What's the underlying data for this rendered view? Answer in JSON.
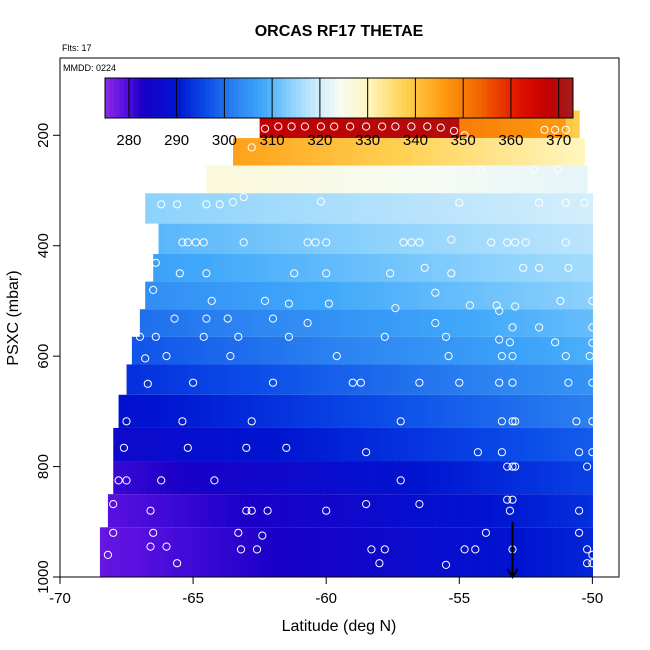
{
  "chart_data": {
    "type": "heatmap",
    "title": "ORCAS RF17 THETAE",
    "flights_label": "Flts: 17",
    "date_label": "MMDD: 0224",
    "xlabel": "Latitude (deg N)",
    "ylabel": "PSXC (mbar)",
    "xlim": [
      -70,
      -49
    ],
    "ylim": [
      1000,
      60
    ],
    "xticks": [
      -70,
      -65,
      -60,
      -55,
      -50
    ],
    "yticks": [
      200,
      400,
      600,
      800,
      1000
    ],
    "colorbar": {
      "min": 275,
      "max": 373,
      "ticks": [
        280,
        290,
        300,
        310,
        320,
        330,
        340,
        350,
        360,
        370
      ],
      "color_stops": [
        {
          "v": 275,
          "c": "#8a2be2"
        },
        {
          "v": 279,
          "c": "#5a10e0"
        },
        {
          "v": 283,
          "c": "#1a00c8"
        },
        {
          "v": 290,
          "c": "#0014d0"
        },
        {
          "v": 296,
          "c": "#0a4ae8"
        },
        {
          "v": 302,
          "c": "#2a80f0"
        },
        {
          "v": 308,
          "c": "#40a8fa"
        },
        {
          "v": 314,
          "c": "#8cd2fc"
        },
        {
          "v": 320,
          "c": "#d4eefc"
        },
        {
          "v": 324,
          "c": "#f6fbf4"
        },
        {
          "v": 330,
          "c": "#fff6c0"
        },
        {
          "v": 338,
          "c": "#ffd050"
        },
        {
          "v": 346,
          "c": "#ff9a10"
        },
        {
          "v": 354,
          "c": "#f06000"
        },
        {
          "v": 362,
          "c": "#e01000"
        },
        {
          "v": 368,
          "c": "#c00000"
        },
        {
          "v": 373,
          "c": "#a02020"
        }
      ]
    },
    "bands": [
      {
        "p": 180,
        "x0": -62.5,
        "x1": -50.5,
        "segments": [
          {
            "x0": -62.5,
            "x1": -55,
            "v0": 368,
            "v1": 370
          },
          {
            "x0": -55,
            "x1": -51,
            "v0": 350,
            "v1": 346
          },
          {
            "x0": -51,
            "x1": -50.5,
            "v0": 340,
            "v1": 338
          }
        ]
      },
      {
        "p": 230,
        "x0": -63.5,
        "x1": -50.3,
        "segments": [
          {
            "x0": -63.5,
            "x1": -50.3,
            "v0": 345,
            "v1": 330
          }
        ]
      },
      {
        "p": 280,
        "x0": -64.5,
        "x1": -50.2,
        "segments": [
          {
            "x0": -64.5,
            "x1": -50.2,
            "v0": 327,
            "v1": 322
          }
        ]
      },
      {
        "p": 330,
        "x0": -66.8,
        "x1": -50.0,
        "segments": [
          {
            "x0": -66.8,
            "x1": -50.0,
            "v0": 314,
            "v1": 320
          }
        ]
      },
      {
        "p": 390,
        "x0": -66.3,
        "x1": -50.0,
        "segments": [
          {
            "x0": -66.3,
            "x1": -50.0,
            "v0": 310,
            "v1": 318
          }
        ]
      },
      {
        "p": 440,
        "x0": -66.5,
        "x1": -50.0,
        "segments": [
          {
            "x0": -66.5,
            "x1": -50.0,
            "v0": 307,
            "v1": 316
          }
        ]
      },
      {
        "p": 490,
        "x0": -66.8,
        "x1": -50.0,
        "segments": [
          {
            "x0": -66.8,
            "x1": -50.0,
            "v0": 304,
            "v1": 314
          }
        ]
      },
      {
        "p": 540,
        "x0": -67.0,
        "x1": -50.0,
        "segments": [
          {
            "x0": -67.0,
            "x1": -50.0,
            "v0": 300,
            "v1": 311
          }
        ]
      },
      {
        "p": 590,
        "x0": -67.3,
        "x1": -50.0,
        "segments": [
          {
            "x0": -67.3,
            "x1": -50.0,
            "v0": 297,
            "v1": 309
          }
        ]
      },
      {
        "p": 640,
        "x0": -67.5,
        "x1": -50.0,
        "segments": [
          {
            "x0": -67.5,
            "x1": -50.0,
            "v0": 293,
            "v1": 305
          }
        ]
      },
      {
        "p": 700,
        "x0": -67.8,
        "x1": -50.0,
        "segments": [
          {
            "x0": -67.8,
            "x1": -50.0,
            "v0": 289,
            "v1": 302
          }
        ]
      },
      {
        "p": 760,
        "x0": -68.0,
        "x1": -50.0,
        "segments": [
          {
            "x0": -68.0,
            "x1": -50.0,
            "v0": 286,
            "v1": 298
          }
        ]
      },
      {
        "p": 820,
        "x0": -68.0,
        "x1": -50.0,
        "segments": [
          {
            "x0": -68.0,
            "x1": -50.0,
            "v0": 281,
            "v1": 295
          }
        ]
      },
      {
        "p": 880,
        "x0": -68.2,
        "x1": -50.0,
        "segments": [
          {
            "x0": -68.2,
            "x1": -50.0,
            "v0": 279,
            "v1": 293
          }
        ]
      },
      {
        "p": 940,
        "x0": -68.5,
        "x1": -50.0,
        "segments": [
          {
            "x0": -68.5,
            "x1": -50.0,
            "v0": 278,
            "v1": 292
          }
        ]
      }
    ],
    "obs_points": [
      [
        -62.3,
        188
      ],
      [
        -61.8,
        184
      ],
      [
        -61.3,
        184
      ],
      [
        -60.8,
        184
      ],
      [
        -60.2,
        184
      ],
      [
        -59.7,
        184
      ],
      [
        -59.1,
        184
      ],
      [
        -58.5,
        184
      ],
      [
        -57.9,
        184
      ],
      [
        -57.4,
        184
      ],
      [
        -56.8,
        184
      ],
      [
        -56.2,
        184
      ],
      [
        -55.7,
        186
      ],
      [
        -55.2,
        192
      ],
      [
        -54.8,
        200
      ],
      [
        -51.8,
        190
      ],
      [
        -51.4,
        190
      ],
      [
        -51.0,
        190
      ],
      [
        -62.8,
        222
      ],
      [
        -54.2,
        262
      ],
      [
        -52.2,
        262
      ],
      [
        -51.3,
        262
      ],
      [
        -66.2,
        325
      ],
      [
        -65.6,
        325
      ],
      [
        -64.5,
        325
      ],
      [
        -64.0,
        325
      ],
      [
        -63.5,
        321
      ],
      [
        -63.1,
        312
      ],
      [
        -60.2,
        320
      ],
      [
        -55.0,
        322
      ],
      [
        -52.0,
        322
      ],
      [
        -51.0,
        322
      ],
      [
        -50.3,
        322
      ],
      [
        -65.4,
        394
      ],
      [
        -65.2,
        394
      ],
      [
        -64.9,
        394
      ],
      [
        -64.6,
        394
      ],
      [
        -63.1,
        394
      ],
      [
        -60.7,
        394
      ],
      [
        -60.4,
        394
      ],
      [
        -60.0,
        394
      ],
      [
        -57.1,
        394
      ],
      [
        -56.8,
        394
      ],
      [
        -56.5,
        394
      ],
      [
        -55.3,
        389
      ],
      [
        -53.8,
        394
      ],
      [
        -53.2,
        394
      ],
      [
        -52.9,
        394
      ],
      [
        -52.5,
        394
      ],
      [
        -51.0,
        394
      ],
      [
        -66.4,
        431
      ],
      [
        -65.5,
        450
      ],
      [
        -64.5,
        450
      ],
      [
        -61.2,
        450
      ],
      [
        -60.0,
        450
      ],
      [
        -57.6,
        450
      ],
      [
        -56.3,
        440
      ],
      [
        -55.3,
        450
      ],
      [
        -52.6,
        440
      ],
      [
        -52.0,
        440
      ],
      [
        -50.9,
        440
      ],
      [
        -66.5,
        480
      ],
      [
        -64.3,
        500
      ],
      [
        -62.3,
        500
      ],
      [
        -61.4,
        505
      ],
      [
        -59.9,
        505
      ],
      [
        -57.4,
        513
      ],
      [
        -55.9,
        485
      ],
      [
        -54.6,
        508
      ],
      [
        -53.6,
        508
      ],
      [
        -53.5,
        518
      ],
      [
        -52.9,
        510
      ],
      [
        -51.2,
        500
      ],
      [
        -50.0,
        500
      ],
      [
        -65.7,
        532
      ],
      [
        -64.5,
        532
      ],
      [
        -63.7,
        532
      ],
      [
        -62.0,
        532
      ],
      [
        -60.7,
        540
      ],
      [
        -55.9,
        540
      ],
      [
        -53.0,
        548
      ],
      [
        -52.0,
        548
      ],
      [
        -50.0,
        548
      ],
      [
        -67.0,
        565
      ],
      [
        -66.4,
        565
      ],
      [
        -64.6,
        565
      ],
      [
        -63.3,
        565
      ],
      [
        -61.4,
        565
      ],
      [
        -57.8,
        565
      ],
      [
        -55.5,
        565
      ],
      [
        -53.5,
        570
      ],
      [
        -53.1,
        575
      ],
      [
        -51.4,
        575
      ],
      [
        -50.0,
        576
      ],
      [
        -66.8,
        604
      ],
      [
        -66.0,
        600
      ],
      [
        -63.6,
        600
      ],
      [
        -59.6,
        600
      ],
      [
        -55.4,
        600
      ],
      [
        -53.4,
        600
      ],
      [
        -53.0,
        600
      ],
      [
        -51.0,
        600
      ],
      [
        -50.1,
        600
      ],
      [
        -66.7,
        650
      ],
      [
        -65.0,
        648
      ],
      [
        -62.0,
        648
      ],
      [
        -59.0,
        648
      ],
      [
        -58.7,
        648
      ],
      [
        -56.5,
        648
      ],
      [
        -55.0,
        648
      ],
      [
        -53.5,
        648
      ],
      [
        -53.0,
        648
      ],
      [
        -50.9,
        648
      ],
      [
        -50.0,
        648
      ],
      [
        -67.5,
        718
      ],
      [
        -65.4,
        718
      ],
      [
        -62.8,
        718
      ],
      [
        -57.2,
        718
      ],
      [
        -53.4,
        718
      ],
      [
        -53.0,
        718
      ],
      [
        -52.9,
        718
      ],
      [
        -50.6,
        718
      ],
      [
        -50.0,
        718
      ],
      [
        -67.6,
        766
      ],
      [
        -65.2,
        766
      ],
      [
        -63.0,
        766
      ],
      [
        -61.5,
        766
      ],
      [
        -58.5,
        774
      ],
      [
        -54.3,
        774
      ],
      [
        -53.4,
        774
      ],
      [
        -50.5,
        774
      ],
      [
        -50.0,
        774
      ],
      [
        -67.8,
        825
      ],
      [
        -67.5,
        825
      ],
      [
        -66.2,
        825
      ],
      [
        -64.2,
        825
      ],
      [
        -57.2,
        825
      ],
      [
        -53.2,
        800
      ],
      [
        -53.0,
        800
      ],
      [
        -52.9,
        800
      ],
      [
        -50.2,
        800
      ],
      [
        -68.0,
        868
      ],
      [
        -66.6,
        880
      ],
      [
        -63.0,
        880
      ],
      [
        -62.8,
        880
      ],
      [
        -62.2,
        880
      ],
      [
        -60.0,
        880
      ],
      [
        -58.5,
        868
      ],
      [
        -56.5,
        868
      ],
      [
        -53.2,
        860
      ],
      [
        -53.0,
        860
      ],
      [
        -53.1,
        880
      ],
      [
        -50.5,
        880
      ],
      [
        -68.0,
        920
      ],
      [
        -66.5,
        920
      ],
      [
        -63.3,
        920
      ],
      [
        -62.4,
        925
      ],
      [
        -54.0,
        920
      ],
      [
        -50.5,
        920
      ],
      [
        -68.2,
        960
      ],
      [
        -66.6,
        945
      ],
      [
        -66.0,
        945
      ],
      [
        -63.2,
        950
      ],
      [
        -62.6,
        950
      ],
      [
        -58.3,
        950
      ],
      [
        -57.8,
        950
      ],
      [
        -54.8,
        950
      ],
      [
        -54.4,
        950
      ],
      [
        -53.0,
        950
      ],
      [
        -50.2,
        950
      ],
      [
        -50.0,
        960
      ],
      [
        -65.6,
        975
      ],
      [
        -58.0,
        975
      ],
      [
        -55.5,
        978
      ],
      [
        -50.2,
        975
      ],
      [
        -50.0,
        975
      ]
    ],
    "arrow": {
      "lat": -53.0,
      "p_top": 900,
      "p_bottom": 1000
    },
    "point_color": "#ffffff",
    "arrow_color": "#000000"
  }
}
